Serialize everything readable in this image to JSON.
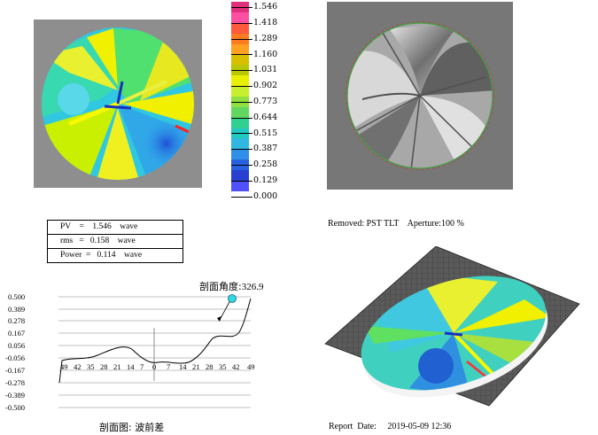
{
  "colorbar": {
    "labels": [
      "1.546",
      "1.418",
      "1.289",
      "1.160",
      "1.031",
      "0.902",
      "0.773",
      "0.644",
      "0.515",
      "0.387",
      "0.258",
      "0.129",
      "0.000"
    ],
    "colors": [
      "#e0307a",
      "#ff4fa0",
      "#ff5a3a",
      "#ff7a20",
      "#ffa020",
      "#d8c000",
      "#b8c800",
      "#e8f000",
      "#c8ee30",
      "#90e040",
      "#60d860",
      "#30d090",
      "#20c8c0",
      "#30b8e0",
      "#3090e8",
      "#2860e0",
      "#2840d0",
      "#5050ff"
    ]
  },
  "stats": {
    "pv": "PV    =    1.546    wave",
    "rms": "rms   =   0.158    wave",
    "power": "Power  =   0.114    wave"
  },
  "removed_line": "Removed: PST TLT    Aperture:100 %",
  "profile": {
    "angle_label": "剖面角度:",
    "angle_value": "326.9",
    "caption": "剖面图: 波前差",
    "y_ticks": [
      "0.500",
      "0.389",
      "0.278",
      "0.167",
      "0.056",
      "-0.056",
      "-0.167",
      "-0.278",
      "-0.389",
      "-0.500"
    ],
    "x_ticks": [
      "49",
      "42",
      "35",
      "28",
      "21",
      "14",
      "7",
      "0",
      "7",
      "14",
      "21",
      "28",
      "35",
      "42",
      "49"
    ]
  },
  "report_date": "Report  Date:     2019-05-09 12:36"
}
